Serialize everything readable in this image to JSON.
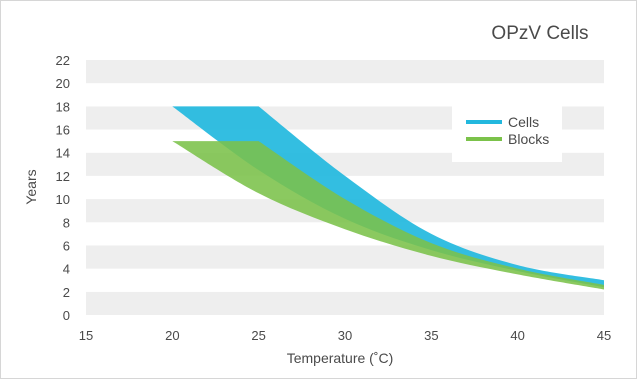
{
  "chart_data": {
    "type": "area",
    "title": "OPzV Cells",
    "xlabel": "Temperature (˚C)",
    "ylabel": "Years",
    "xlim": [
      15,
      45
    ],
    "ylim": [
      0,
      22
    ],
    "x_ticks": [
      15,
      20,
      25,
      30,
      35,
      40,
      45
    ],
    "y_ticks": [
      0,
      2,
      4,
      6,
      8,
      10,
      12,
      14,
      16,
      18,
      20,
      22
    ],
    "grid": "horizontal bands",
    "legend_position": "top-right",
    "series": [
      {
        "name": "Cells",
        "color": "#22b8de",
        "x": [
          20,
          25,
          30,
          35,
          40,
          45
        ],
        "upper": [
          18,
          18,
          12,
          7,
          4.3,
          3.0
        ],
        "lower": [
          18,
          12.5,
          8.3,
          5.6,
          3.8,
          2.4
        ]
      },
      {
        "name": "Blocks",
        "color": "#7bc24a",
        "x": [
          20,
          25,
          30,
          35,
          40,
          45
        ],
        "upper": [
          15,
          15,
          10,
          6.2,
          4.0,
          2.6
        ],
        "lower": [
          15,
          10.5,
          7.4,
          5.1,
          3.5,
          2.2
        ]
      }
    ]
  }
}
